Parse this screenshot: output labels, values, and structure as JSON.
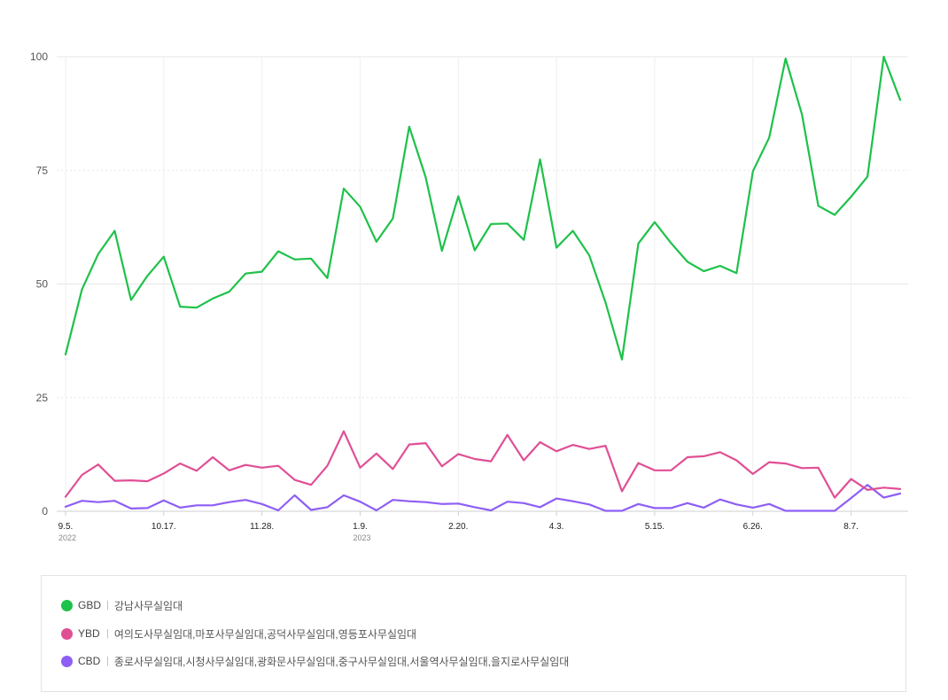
{
  "chart_data": {
    "type": "line",
    "ylim": [
      0,
      100
    ],
    "y_ticks": [
      "0",
      "25",
      "50",
      "75",
      "100"
    ],
    "x_tick_labels": [
      {
        "index": 0,
        "label": "9.5.",
        "year": "2022"
      },
      {
        "index": 6,
        "label": "10.17."
      },
      {
        "index": 12,
        "label": "11.28."
      },
      {
        "index": 18,
        "label": "1.9.",
        "year": "2023"
      },
      {
        "index": 24,
        "label": "2.20."
      },
      {
        "index": 30,
        "label": "4.3."
      },
      {
        "index": 36,
        "label": "5.15."
      },
      {
        "index": 42,
        "label": "6.26."
      },
      {
        "index": 48,
        "label": "8.7."
      }
    ],
    "series": [
      {
        "name": "GBD",
        "color": "#1ec14a",
        "values": [
          34.5,
          48.8,
          56.6,
          61.7,
          46.5,
          51.8,
          56.0,
          45.0,
          44.8,
          46.8,
          48.3,
          52.3,
          52.7,
          57.2,
          55.4,
          55.6,
          51.3,
          71.0,
          67.0,
          59.3,
          64.4,
          84.6,
          73.5,
          57.3,
          69.3,
          57.4,
          63.2,
          63.3,
          59.7,
          77.4,
          58.0,
          61.7,
          56.3,
          45.9,
          33.4,
          58.9,
          63.6,
          59.0,
          54.9,
          52.8,
          54.0,
          52.4,
          74.8,
          82.2,
          99.6,
          87.3,
          67.2,
          65.2,
          69.2,
          73.6,
          100,
          90.5
        ]
      },
      {
        "name": "YBD",
        "color": "#e04f95",
        "values": [
          3.2,
          8.0,
          10.3,
          6.7,
          6.8,
          6.6,
          8.3,
          10.5,
          8.9,
          11.9,
          9.0,
          10.2,
          9.6,
          10.0,
          6.9,
          5.8,
          10.0,
          17.6,
          9.6,
          12.7,
          9.3,
          14.7,
          15.0,
          9.9,
          12.6,
          11.5,
          11.0,
          16.8,
          11.2,
          15.2,
          13.2,
          14.6,
          13.7,
          14.4,
          4.4,
          10.6,
          9.0,
          9.0,
          11.9,
          12.1,
          13.0,
          11.2,
          8.2,
          10.8,
          10.5,
          9.5,
          9.6,
          3.0,
          7.1,
          4.7,
          5.2,
          4.9
        ]
      },
      {
        "name": "CBD",
        "color": "#8e5ef5",
        "values": [
          1.0,
          2.3,
          2.0,
          2.3,
          0.6,
          0.7,
          2.4,
          0.8,
          1.3,
          1.3,
          2.0,
          2.5,
          1.6,
          0.2,
          3.5,
          0.3,
          0.9,
          3.5,
          2.1,
          0.2,
          2.5,
          2.2,
          2.0,
          1.6,
          1.7,
          0.9,
          0.2,
          2.1,
          1.8,
          0.9,
          2.8,
          2.2,
          1.5,
          0.1,
          0.1,
          1.6,
          0.7,
          0.7,
          1.8,
          0.8,
          2.6,
          1.5,
          0.8,
          1.6,
          0.1,
          0.1,
          0.1,
          0.1,
          2.9,
          5.8,
          3.0,
          3.9
        ]
      }
    ]
  },
  "legend": [
    {
      "code": "GBD",
      "color": "#1ec14a",
      "desc": "강남사무실임대"
    },
    {
      "code": "YBD",
      "color": "#e04f95",
      "desc": "여의도사무실임대,마포사무실임대,공덕사무실임대,영등포사무실임대"
    },
    {
      "code": "CBD",
      "color": "#8e5ef5",
      "desc": "종로사무실임대,시청사무실임대,광화문사무실임대,중구사무실임대,서울역사무실임대,을지로사무실임대"
    }
  ],
  "legend_separator": "|"
}
